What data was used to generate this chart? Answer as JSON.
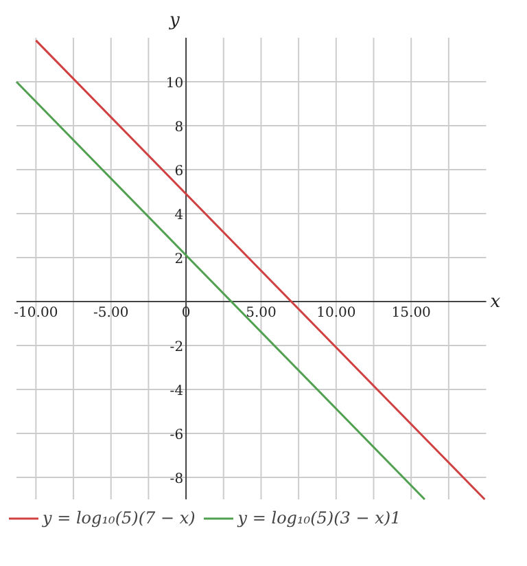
{
  "chart_data": {
    "type": "line",
    "xlabel": "x",
    "ylabel": "y",
    "xlim": [
      -11.3,
      20
    ],
    "ylim": [
      -9,
      12
    ],
    "xticks": [
      {
        "value": -10,
        "label": "-10.00"
      },
      {
        "value": -7.5,
        "label": null
      },
      {
        "value": -5,
        "label": "-5.00"
      },
      {
        "value": -2.5,
        "label": null
      },
      0,
      {
        "value": 2.5,
        "label": null
      },
      {
        "value": 5,
        "label": "5.00"
      },
      {
        "value": 7.5,
        "label": null
      },
      {
        "value": 10,
        "label": "10.00"
      },
      {
        "value": 12.5,
        "label": null
      },
      {
        "value": 15,
        "label": "15.00"
      },
      {
        "value": 17.5,
        "label": null
      }
    ],
    "yticks": [
      -8,
      -6,
      -4,
      -2,
      2,
      4,
      6,
      8,
      10
    ],
    "grid": true,
    "legend": "bottom",
    "marker": "none",
    "line_style": "solid",
    "series": [
      {
        "name": "y = log₁₀(5)(7 − x)",
        "color": "#d04040",
        "x": [
          -10,
          19.9
        ],
        "values": [
          11.88,
          -9
        ]
      },
      {
        "name": "y = log₁₀(5)(3 − x)1",
        "color": "#50a050",
        "x": [
          -11.3,
          15.9
        ],
        "values": [
          10.0,
          -9
        ]
      }
    ]
  }
}
